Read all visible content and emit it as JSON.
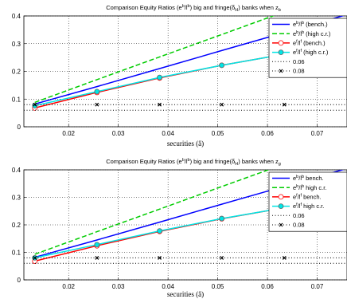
{
  "chart_data": [
    {
      "type": "line",
      "title": "Comparison Equity Ratios (e^b/l^b) big and fringe(δ_H) banks when z_b",
      "title_parts": {
        "main": "Comparison Equity Ratios (e",
        "sup1": "b",
        "mid1": "/l",
        "sup2": "b",
        "mid2": ") big and fringe(δ",
        "sub1": "H",
        "mid3": ") banks when z",
        "sub2": "b"
      },
      "xlabel": "securities (â)",
      "ylabel": "",
      "xlim": [
        0.011,
        0.076
      ],
      "ylim": [
        0,
        0.4
      ],
      "xticks": [
        "0.02",
        "0.03",
        "0.04",
        "0.05",
        "0.06",
        "0.07"
      ],
      "yticks": [
        "0",
        "0.1",
        "0.2",
        "0.3",
        "0.4"
      ],
      "grid": true,
      "legend_position": "right",
      "series": [
        {
          "name": "e^b/l^b (bench.)",
          "legend": {
            "a": "e",
            "sa": "b",
            "b": "/l",
            "sb": "b",
            "c": " (bench.)"
          },
          "color": "#0000ff",
          "style": "solid",
          "marker": "none",
          "x": [
            0.0132,
            0.0257,
            0.0383,
            0.0508,
            0.0634,
            0.076
          ],
          "y": [
            0.082,
            0.145,
            0.21,
            0.275,
            0.34,
            0.405
          ]
        },
        {
          "name": "e^b/l^b (high c.r.)",
          "legend": {
            "a": "e",
            "sa": "b",
            "b": "/l",
            "sb": "b",
            "c": " (high c.r.)"
          },
          "color": "#00cc00",
          "style": "dashed",
          "marker": "none",
          "x": [
            0.0132,
            0.0257,
            0.0383,
            0.0508,
            0.0634,
            0.076
          ],
          "y": [
            0.088,
            0.17,
            0.252,
            0.333,
            0.415,
            0.497
          ]
        },
        {
          "name": "e^f/l^f (bench.)",
          "legend": {
            "a": "e",
            "sa": "f",
            "b": "/l",
            "sb": "f",
            "c": " (bench.)"
          },
          "color": "#ff0000",
          "style": "solid",
          "marker": "circle",
          "x": [
            0.0132,
            0.0257,
            0.0383,
            0.0508,
            0.0634
          ],
          "y": [
            0.068,
            0.124,
            0.176,
            0.222,
            0.262
          ]
        },
        {
          "name": "e^f/l^f (high c.r.)",
          "legend": {
            "a": "e",
            "sa": "f",
            "b": "/l",
            "sb": "f",
            "c": " (high c.r.)"
          },
          "color": "#00e5e5",
          "style": "solid",
          "marker": "circle",
          "x": [
            0.0132,
            0.0257,
            0.0383,
            0.0508,
            0.0634,
            0.076
          ],
          "y": [
            0.076,
            0.127,
            0.178,
            0.222,
            0.262,
            0.298
          ]
        },
        {
          "name": "0.06",
          "legend": {
            "a": "0.06",
            "sa": "",
            "b": "",
            "sb": "",
            "c": ""
          },
          "color": "#000000",
          "style": "dotted",
          "marker": "none",
          "x": [
            0.011,
            0.076
          ],
          "y": [
            0.06,
            0.06
          ]
        },
        {
          "name": "0.08",
          "legend": {
            "a": "0.08",
            "sa": "",
            "b": "",
            "sb": "",
            "c": ""
          },
          "color": "#000000",
          "style": "dotted",
          "marker": "x",
          "x": [
            0.0132,
            0.0257,
            0.0383,
            0.0508,
            0.0634
          ],
          "y": [
            0.08,
            0.08,
            0.08,
            0.08,
            0.08
          ],
          "line_span": [
            0.011,
            0.076
          ]
        }
      ]
    },
    {
      "type": "line",
      "title": "Comparison Equity Ratios (e^b/l^b) big and fringe(δ_H) banks when z_g",
      "title_parts": {
        "main": "Comparison Equity Ratios (e",
        "sup1": "b",
        "mid1": "/l",
        "sup2": "b",
        "mid2": ") big and fringe(δ",
        "sub1": "H",
        "mid3": ") banks when z",
        "sub2": "g"
      },
      "xlabel": "securities (â)",
      "ylabel": "",
      "xlim": [
        0.011,
        0.076
      ],
      "ylim": [
        0,
        0.4
      ],
      "xticks": [
        "0.02",
        "0.03",
        "0.04",
        "0.05",
        "0.06",
        "0.07"
      ],
      "yticks": [
        "0",
        "0.1",
        "0.2",
        "0.3",
        "0.4"
      ],
      "grid": true,
      "legend_position": "right",
      "series": [
        {
          "name": "e^b/l^b bench.",
          "legend": {
            "a": "e",
            "sa": "b",
            "b": "/l",
            "sb": "b",
            "c": " bench."
          },
          "color": "#0000ff",
          "style": "solid",
          "marker": "none",
          "x": [
            0.0132,
            0.0257,
            0.0383,
            0.0508,
            0.0634,
            0.076
          ],
          "y": [
            0.082,
            0.145,
            0.21,
            0.275,
            0.34,
            0.405
          ]
        },
        {
          "name": "e^b/l^b high c.r.",
          "legend": {
            "a": "e",
            "sa": "b",
            "b": "/l",
            "sb": "b",
            "c": " high c.r."
          },
          "color": "#00cc00",
          "style": "dashed",
          "marker": "none",
          "x": [
            0.0132,
            0.0257,
            0.0383,
            0.0508,
            0.0634,
            0.076
          ],
          "y": [
            0.093,
            0.175,
            0.257,
            0.339,
            0.421,
            0.503
          ]
        },
        {
          "name": "e^f/l^f bench.",
          "legend": {
            "a": "e",
            "sa": "f",
            "b": "/l",
            "sb": "f",
            "c": " bench."
          },
          "color": "#ff0000",
          "style": "solid",
          "marker": "circle",
          "x": [
            0.0132,
            0.0257,
            0.0383,
            0.0508,
            0.0634
          ],
          "y": [
            0.068,
            0.124,
            0.176,
            0.222,
            0.262
          ]
        },
        {
          "name": "e^f/l^f high c.r.",
          "legend": {
            "a": "e",
            "sa": "f",
            "b": "/l",
            "sb": "f",
            "c": " high c.r."
          },
          "color": "#00e5e5",
          "style": "solid",
          "marker": "circle",
          "x": [
            0.0132,
            0.0257,
            0.0383,
            0.0508,
            0.0634,
            0.076
          ],
          "y": [
            0.08,
            0.128,
            0.178,
            0.223,
            0.262,
            0.298
          ]
        },
        {
          "name": "0.06",
          "legend": {
            "a": "0.06",
            "sa": "",
            "b": "",
            "sb": "",
            "c": ""
          },
          "color": "#000000",
          "style": "dotted",
          "marker": "none",
          "x": [
            0.011,
            0.076
          ],
          "y": [
            0.06,
            0.06
          ]
        },
        {
          "name": "0.08",
          "legend": {
            "a": "0.08",
            "sa": "",
            "b": "",
            "sb": "",
            "c": ""
          },
          "color": "#000000",
          "style": "dotted",
          "marker": "x",
          "x": [
            0.0132,
            0.0257,
            0.0383,
            0.0508,
            0.0634
          ],
          "y": [
            0.08,
            0.08,
            0.08,
            0.08,
            0.08
          ],
          "line_span": [
            0.011,
            0.076
          ]
        }
      ]
    }
  ]
}
